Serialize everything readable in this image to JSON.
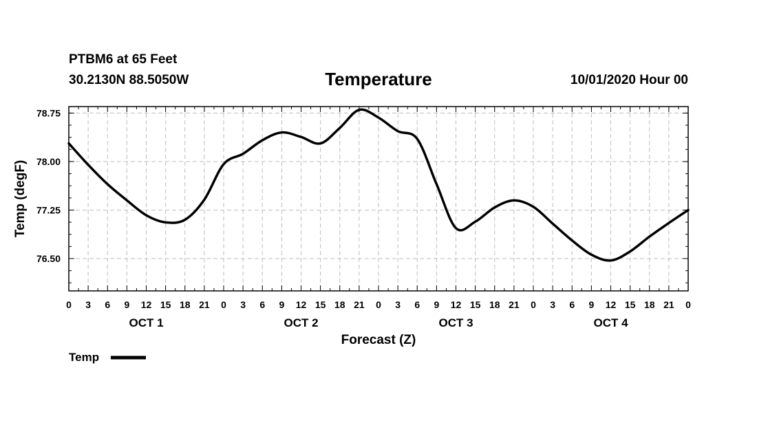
{
  "header": {
    "station": "PTBM6 at 65 Feet",
    "coords": "30.2130N 88.5050W",
    "datetime": "10/01/2020 Hour 00"
  },
  "chart_data": {
    "type": "line",
    "title": "Temperature",
    "xlabel": "Forecast (Z)",
    "ylabel": "Temp (degF)",
    "x_unit": "hours since 10/01/2020 00Z",
    "xlim": [
      0,
      96
    ],
    "ylim": [
      76.0,
      78.85
    ],
    "grid": true,
    "legend_position": "bottom-left",
    "y_ticks": [
      {
        "value": 76.5,
        "label": "76.50"
      },
      {
        "value": 77.25,
        "label": "77.25"
      },
      {
        "value": 78.0,
        "label": "78.00"
      },
      {
        "value": 78.75,
        "label": "78.75"
      }
    ],
    "x_tick_hours": [
      0,
      3,
      6,
      9,
      12,
      15,
      18,
      21,
      24,
      27,
      30,
      33,
      36,
      39,
      42,
      45,
      48,
      51,
      54,
      57,
      60,
      63,
      66,
      69,
      72,
      75,
      78,
      81,
      84,
      87,
      90,
      93,
      96
    ],
    "x_tick_labels": [
      "0",
      "3",
      "6",
      "9",
      "12",
      "15",
      "18",
      "21",
      "0",
      "3",
      "6",
      "9",
      "12",
      "15",
      "18",
      "21",
      "0",
      "3",
      "6",
      "9",
      "12",
      "15",
      "18",
      "21",
      "0",
      "3",
      "6",
      "9",
      "12",
      "15",
      "18",
      "21",
      "0"
    ],
    "day_labels": [
      {
        "label": "OCT 1",
        "hour": 12
      },
      {
        "label": "OCT 2",
        "hour": 36
      },
      {
        "label": "OCT 3",
        "hour": 60
      },
      {
        "label": "OCT 4",
        "hour": 84
      }
    ],
    "series": [
      {
        "name": "Temp",
        "color": "#000000",
        "x": [
          0,
          3,
          6,
          9,
          12,
          15,
          18,
          21,
          24,
          27,
          30,
          33,
          36,
          39,
          42,
          45,
          48,
          51,
          54,
          57,
          60,
          63,
          66,
          69,
          72,
          75,
          78,
          81,
          84,
          87,
          90,
          93,
          96
        ],
        "y": [
          78.28,
          77.95,
          77.65,
          77.4,
          77.17,
          77.06,
          77.1,
          77.41,
          77.96,
          78.12,
          78.33,
          78.45,
          78.38,
          78.28,
          78.52,
          78.8,
          78.68,
          78.47,
          78.35,
          77.65,
          76.97,
          77.07,
          77.29,
          77.4,
          77.3,
          77.04,
          76.78,
          76.56,
          76.47,
          76.61,
          76.84,
          77.05,
          77.25
        ]
      }
    ]
  }
}
